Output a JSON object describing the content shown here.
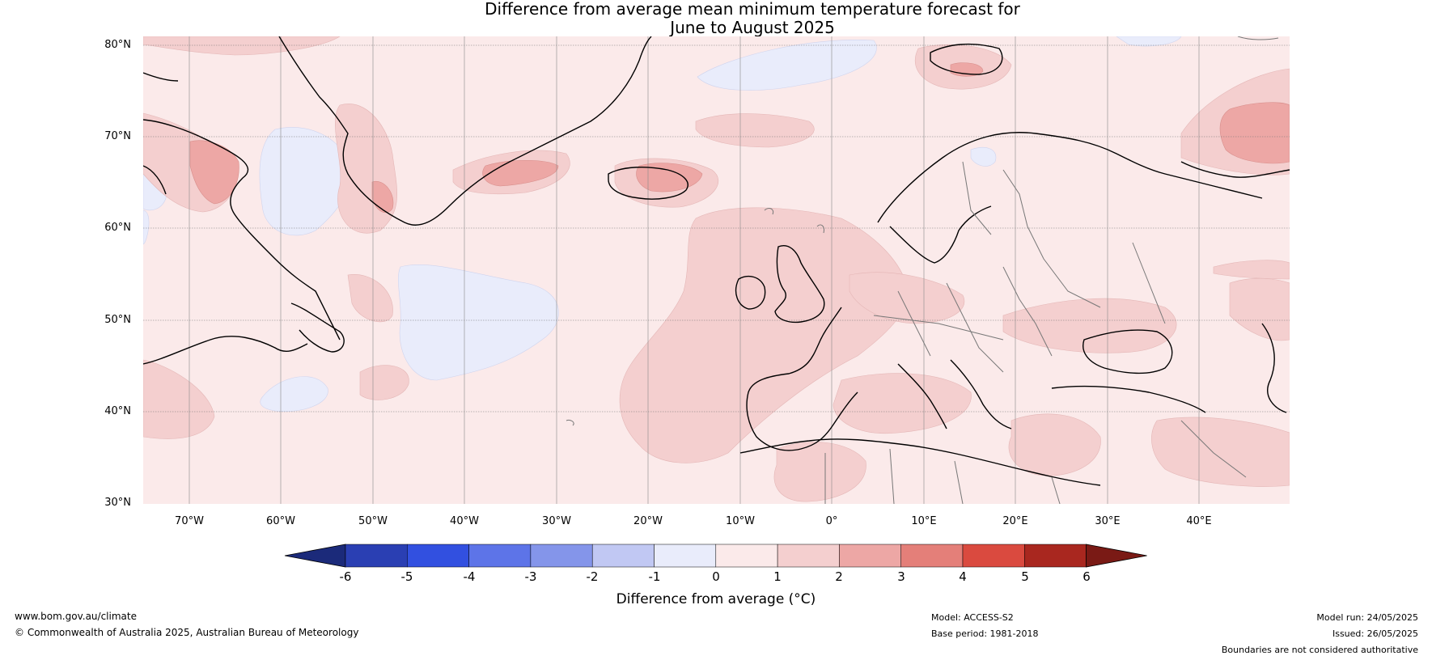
{
  "title_line1": "Difference from average mean minimum temperature forecast for",
  "title_line2": "June to August 2025",
  "lat_labels": [
    "80°N",
    "70°N",
    "60°N",
    "50°N",
    "40°N",
    "30°N"
  ],
  "lon_labels": [
    "70°W",
    "60°W",
    "50°W",
    "40°W",
    "30°W",
    "20°W",
    "10°W",
    "0°",
    "10°E",
    "20°E",
    "30°E",
    "40°E"
  ],
  "colorbar": {
    "ticks": [
      "-6",
      "-5",
      "-4",
      "-3",
      "-2",
      "-1",
      "0",
      "1",
      "2",
      "3",
      "4",
      "5",
      "6"
    ],
    "colors": [
      "#1b2a7a",
      "#2a3fb3",
      "#3250e0",
      "#5d74e8",
      "#8495ea",
      "#c1c8f3",
      "#e9ecfb",
      "#fbeaea",
      "#f4cfcf",
      "#eda7a5",
      "#e47f79",
      "#da4a3f",
      "#a9271f",
      "#7a1a15"
    ],
    "label": "Difference from average (°C)"
  },
  "footer": {
    "url": "www.bom.gov.au/climate",
    "copyright": "© Commonwealth of Australia 2025, Australian Bureau of Meteorology",
    "model": "Model: ACCESS-S2",
    "base_period": "Base period: 1981-2018",
    "model_run": "Model run: 24/05/2025",
    "issued": "Issued: 26/05/2025",
    "disclaimer": "Boundaries are not considered authoritative"
  }
}
